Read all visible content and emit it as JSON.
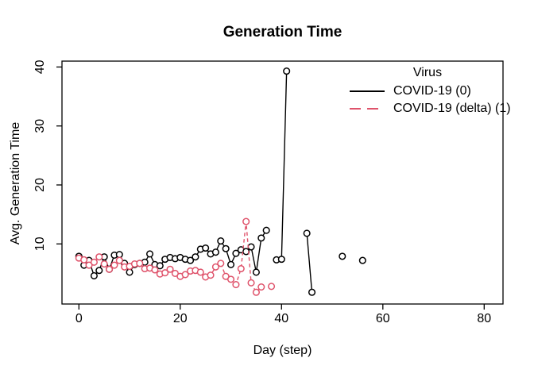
{
  "chart_data": {
    "type": "line",
    "title": "Generation Time",
    "xlabel": "Day (step)",
    "ylabel": "Avg. Generation Time",
    "x_ticks": [
      0,
      20,
      40,
      60,
      80
    ],
    "y_ticks": [
      10,
      20,
      30,
      40
    ],
    "xlim": [
      0,
      80
    ],
    "ylim": [
      0,
      40
    ],
    "grid": false,
    "marker": "open-circle",
    "x_start": 0,
    "x_step": 1,
    "legend": {
      "title": "Virus",
      "position": "top-right"
    },
    "series": [
      {
        "name": "COVID-19 (0)",
        "color": "#000000",
        "line_style": "solid",
        "y": [
          7.9,
          6.4,
          7.2,
          4.6,
          5.5,
          7.8,
          5.7,
          8.1,
          8.2,
          6.7,
          5.2,
          6.5,
          6.7,
          6.9,
          8.3,
          6.5,
          6.3,
          7.4,
          7.7,
          7.5,
          7.7,
          7.4,
          7.2,
          7.8,
          9.1,
          9.3,
          8.3,
          8.6,
          10.5,
          9.2,
          6.5,
          8.4,
          9.0,
          8.7,
          9.5,
          5.2,
          11.0,
          12.3,
          null,
          7.3,
          7.4,
          39.3,
          null,
          null,
          null,
          11.8,
          1.8,
          null,
          null,
          null,
          null,
          null,
          7.9,
          null,
          null,
          null,
          7.2
        ]
      },
      {
        "name": "COVID-19 (delta) (1)",
        "color": "#DF536B",
        "line_style": "dashed",
        "y": [
          7.6,
          7.3,
          6.4,
          6.9,
          7.8,
          6.6,
          5.7,
          6.4,
          7.2,
          6.1,
          6.2,
          6.6,
          6.7,
          5.8,
          5.9,
          5.6,
          4.9,
          5.1,
          5.7,
          5.0,
          4.5,
          4.8,
          5.4,
          5.5,
          5.2,
          4.4,
          4.7,
          6.1,
          6.7,
          4.5,
          4.0,
          3.1,
          5.8,
          13.8,
          3.4,
          1.8,
          2.7,
          null,
          2.8
        ]
      }
    ]
  }
}
